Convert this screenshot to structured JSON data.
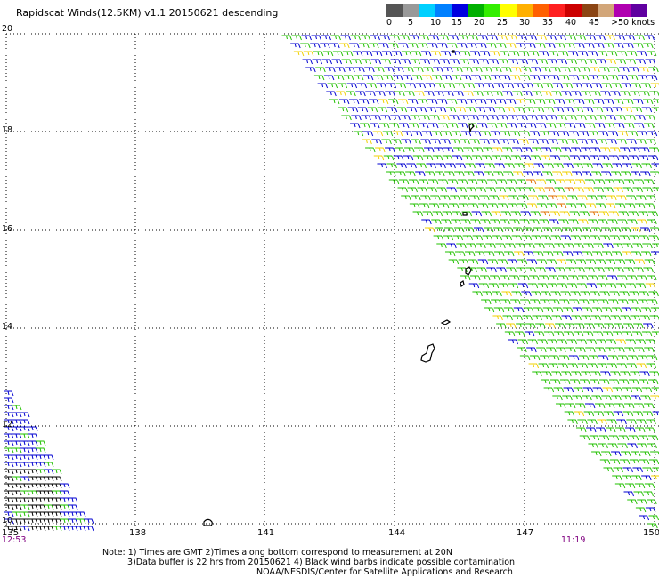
{
  "title": "Rapidscat Winds(12.5KM) v1.1 20150621 descending",
  "colorbar": {
    "colors": [
      "#555555",
      "#999999",
      "#00d0ff",
      "#0080ff",
      "#0000e0",
      "#00b000",
      "#33ee00",
      "#ffff00",
      "#ffb000",
      "#ff6000",
      "#ff2020",
      "#cc0000",
      "#8b4513",
      "#d2a679",
      "#b000b0",
      "#6000a0"
    ],
    "labels": [
      "0",
      "5",
      "10",
      "15",
      "20",
      "25",
      "30",
      "35",
      "40",
      "45",
      ">50 knots"
    ]
  },
  "lat_labels": [
    "20",
    "18",
    "16",
    "14",
    "12",
    "10"
  ],
  "lon_labels": [
    "135",
    "138",
    "141",
    "144",
    "147",
    "150"
  ],
  "times": {
    "left": "12:53",
    "right": "11:19"
  },
  "notes": [
    "Note: 1) Times are GMT 2)Times along bottom correspond to measurement at 20N",
    "3)Data buffer is 22 hrs from 20150621 4) Black wind barbs indicate possible contamination",
    "NOAA/NESDIS/Center for Satellite Applications and Research"
  ],
  "wind_colors": {
    "blue": "#0000d0",
    "green": "#22c000",
    "yellow": "#f0d000",
    "black": "#000000",
    "orange": "#e07000"
  }
}
